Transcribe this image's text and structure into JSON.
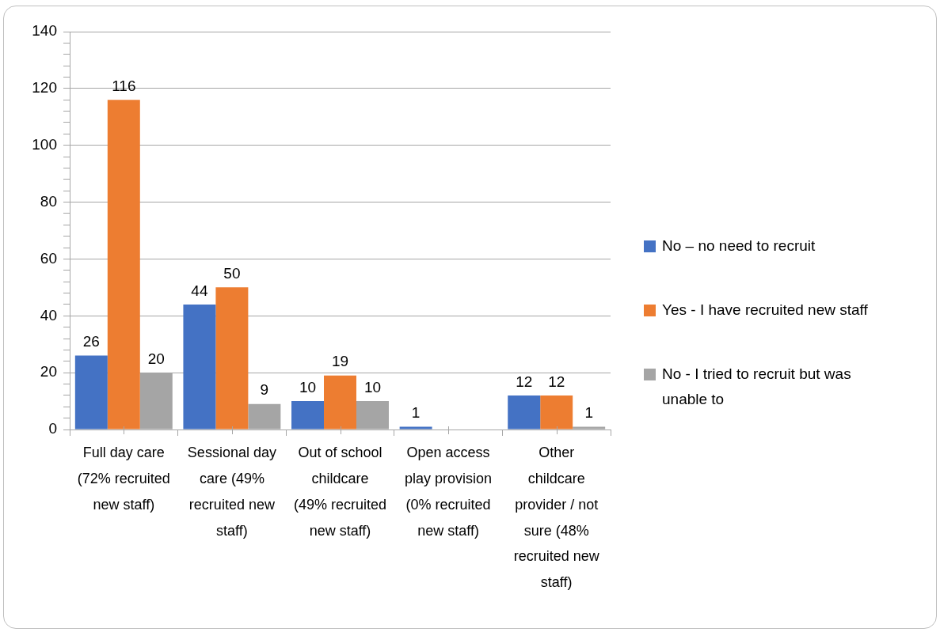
{
  "chart_data": {
    "type": "bar",
    "categories": [
      "Full day care (72% recruited new staff)",
      "Sessional day care (49% recruited new staff)",
      "Out of school childcare (49% recruited new staff)",
      "Open access play provision (0% recruited new staff)",
      "Other childcare provider / not sure (48% recruited new staff)"
    ],
    "series": [
      {
        "name": "No – no need to recruit",
        "color": "#4472c4",
        "values": [
          26,
          44,
          10,
          1,
          12
        ]
      },
      {
        "name": "Yes - I have recruited new staff",
        "color": "#ed7d31",
        "values": [
          116,
          50,
          19,
          null,
          12
        ]
      },
      {
        "name": "No - I tried to recruit but was unable to",
        "color": "#a5a5a5",
        "values": [
          20,
          9,
          10,
          null,
          1
        ]
      }
    ],
    "ylim": [
      0,
      140
    ],
    "yticks": [
      0,
      {
        "value": 4,
        "label": null
      },
      {
        "value": 8,
        "label": null
      },
      {
        "value": 12,
        "label": null
      },
      {
        "value": 16,
        "label": null
      },
      20,
      {
        "value": 24,
        "label": null
      },
      {
        "value": 28,
        "label": null
      },
      {
        "value": 32,
        "label": null
      },
      {
        "value": 36,
        "label": null
      },
      40,
      {
        "value": 44,
        "label": null
      },
      {
        "value": 48,
        "label": null
      },
      {
        "value": 52,
        "label": null
      },
      {
        "value": 56,
        "label": null
      },
      60,
      {
        "value": 64,
        "label": null
      },
      {
        "value": 68,
        "label": null
      },
      {
        "value": 72,
        "label": null
      },
      {
        "value": 76,
        "label": null
      },
      80,
      {
        "value": 84,
        "label": null
      },
      {
        "value": 88,
        "label": null
      },
      {
        "value": 92,
        "label": null
      },
      {
        "value": 96,
        "label": null
      },
      100,
      {
        "value": 104,
        "label": null
      },
      {
        "value": 108,
        "label": null
      },
      {
        "value": 112,
        "label": null
      },
      {
        "value": 116,
        "label": null
      },
      120,
      {
        "value": 124,
        "label": null
      },
      {
        "value": 128,
        "label": null
      },
      {
        "value": 132,
        "label": null
      },
      {
        "value": 136,
        "label": null
      },
      140
    ],
    "grid": "y",
    "legend": "right",
    "data_labels": true
  }
}
